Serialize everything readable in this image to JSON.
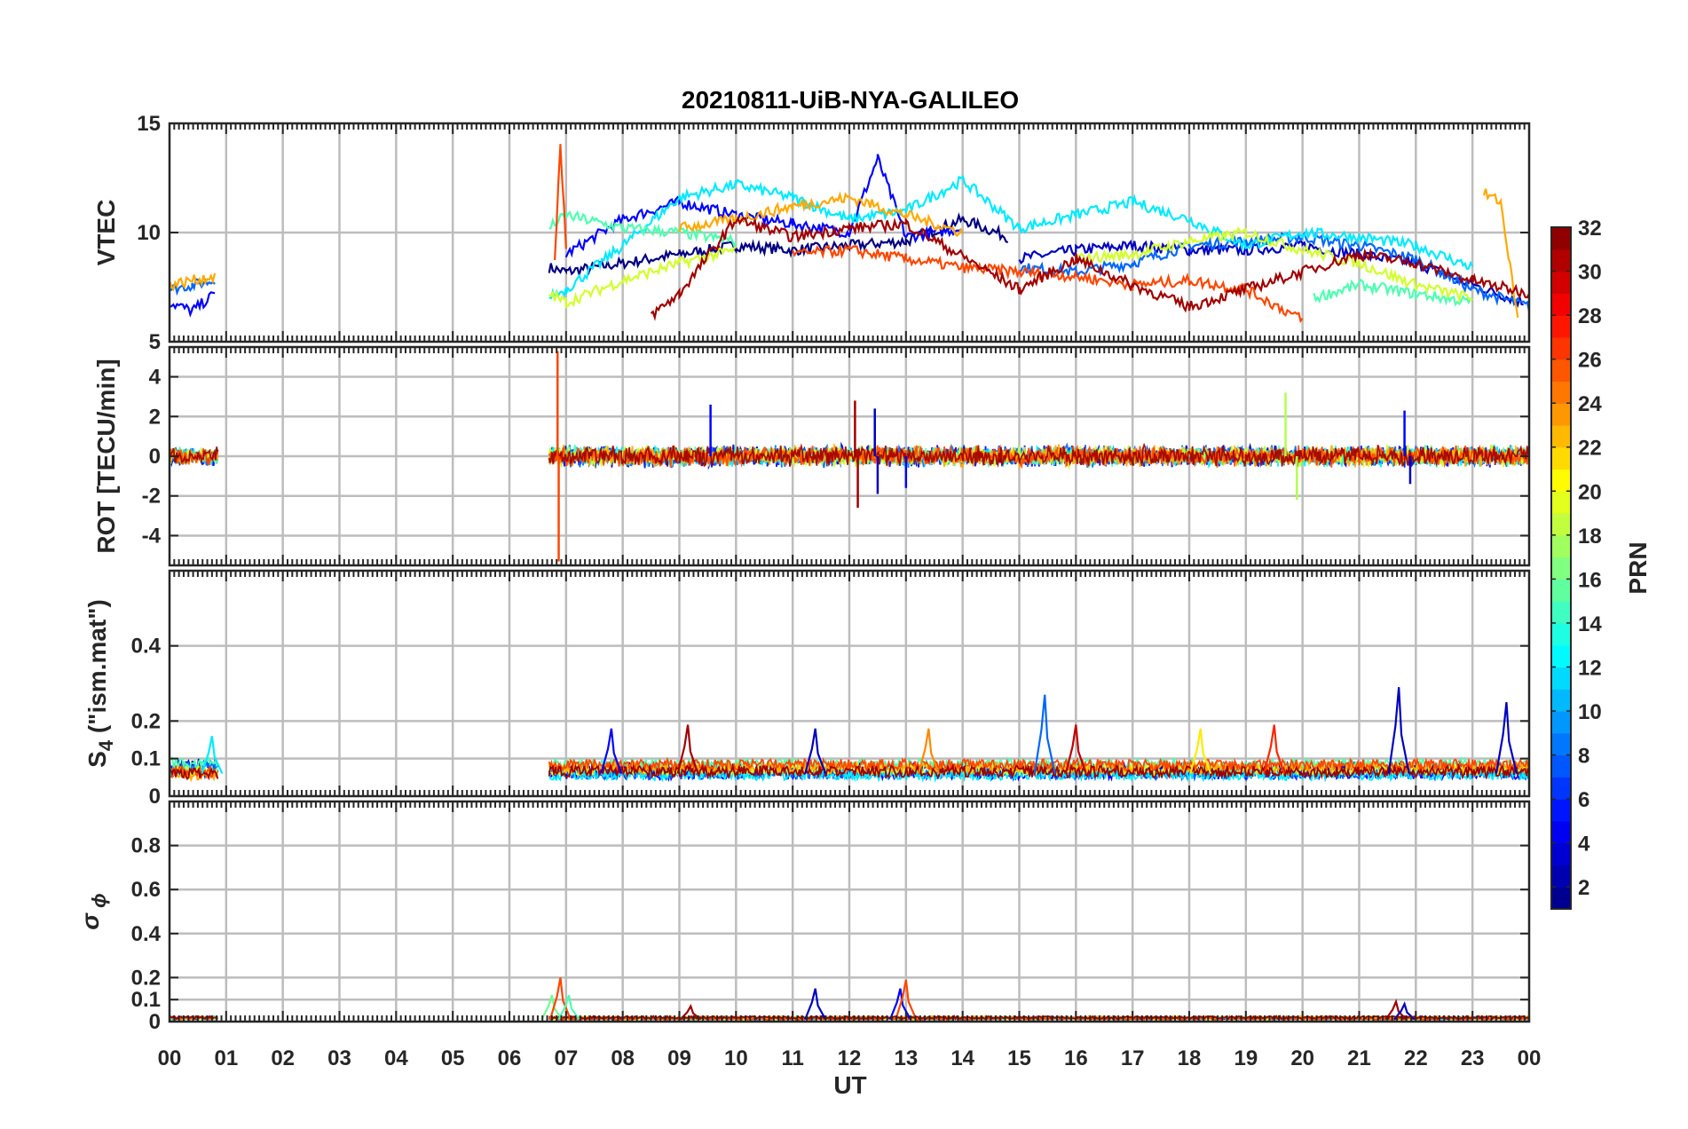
{
  "figure": {
    "title": "20210811-UiB-NYA-GALILEO",
    "colors": {
      "axis": "#262626",
      "grid": "#bdbdbd",
      "background": "#ffffff"
    }
  },
  "chart_data": [
    {
      "type": "line",
      "panel": "vtec",
      "ylabel": "VTEC",
      "ylim": [
        5,
        15
      ],
      "yticks": [
        "5",
        "10",
        "15"
      ],
      "yticks_v": [
        5,
        10,
        15
      ],
      "grid_y": [
        10
      ],
      "series": [
        {
          "prn": 1,
          "segments": [
            [
              6.7,
              8.4
            ],
            [
              7.0,
              8.2
            ],
            [
              8.0,
              8.6
            ],
            [
              9.0,
              9.0
            ],
            [
              10.0,
              9.4
            ],
            [
              11.0,
              9.2
            ],
            [
              12.0,
              9.4
            ],
            [
              13.0,
              9.6
            ],
            [
              14.0,
              10.6
            ],
            [
              14.8,
              9.8
            ]
          ]
        },
        {
          "prn": 3,
          "segments": [
            [
              15.0,
              8.8
            ],
            [
              16.0,
              9.2
            ],
            [
              17.0,
              9.4
            ],
            [
              18.0,
              9.2
            ],
            [
              19.0,
              9.2
            ],
            [
              20.0,
              9.4
            ],
            [
              21.0,
              9.0
            ],
            [
              22.0,
              8.6
            ],
            [
              23.0,
              7.6
            ],
            [
              23.9,
              6.8
            ]
          ]
        },
        {
          "prn": 5,
          "segments": [
            [
              0.0,
              6.8
            ],
            [
              0.4,
              6.4
            ],
            [
              0.8,
              7.2
            ],
            [
              7.0,
              9.0
            ],
            [
              8.0,
              10.6
            ],
            [
              9.0,
              11.4
            ],
            [
              10.0,
              10.8
            ],
            [
              11.0,
              10.4
            ],
            [
              12.0,
              10.0
            ],
            [
              12.5,
              13.4
            ],
            [
              13.0,
              9.8
            ],
            [
              14.0,
              10.2
            ]
          ]
        },
        {
          "prn": 8,
          "segments": [
            [
              0.0,
              7.4
            ],
            [
              0.4,
              7.6
            ],
            [
              0.8,
              7.8
            ],
            [
              15.0,
              8.4
            ],
            [
              16.0,
              8.2
            ],
            [
              17.0,
              8.6
            ],
            [
              18.0,
              9.4
            ],
            [
              19.0,
              9.6
            ],
            [
              20.0,
              9.8
            ],
            [
              21.0,
              9.4
            ],
            [
              22.0,
              8.8
            ],
            [
              23.0,
              7.4
            ],
            [
              24.0,
              6.6
            ]
          ]
        },
        {
          "prn": 12,
          "segments": [
            [
              6.7,
              7.0
            ],
            [
              7.0,
              7.4
            ],
            [
              8.0,
              9.4
            ],
            [
              9.0,
              11.6
            ],
            [
              10.0,
              12.2
            ],
            [
              11.0,
              11.6
            ],
            [
              12.0,
              10.6
            ],
            [
              13.0,
              11.0
            ],
            [
              14.0,
              12.4
            ],
            [
              15.0,
              10.2
            ],
            [
              16.0,
              10.8
            ],
            [
              17.0,
              11.4
            ],
            [
              18.0,
              10.6
            ],
            [
              19.0,
              9.4
            ],
            [
              20.0,
              10.0
            ],
            [
              21.0,
              9.8
            ],
            [
              22.0,
              9.4
            ],
            [
              23.0,
              8.4
            ]
          ]
        },
        {
          "prn": 15,
          "segments": [
            [
              6.7,
              10.2
            ],
            [
              7.0,
              10.8
            ],
            [
              8.0,
              10.2
            ],
            [
              9.0,
              10.0
            ],
            [
              10.0,
              9.6
            ],
            [
              20.2,
              7.0
            ],
            [
              21.0,
              7.6
            ],
            [
              22.0,
              7.2
            ],
            [
              23.0,
              6.8
            ]
          ]
        },
        {
          "prn": 19,
          "segments": [
            [
              6.7,
              7.2
            ],
            [
              7.0,
              6.8
            ],
            [
              8.0,
              7.8
            ],
            [
              9.0,
              8.6
            ],
            [
              10.0,
              9.2
            ],
            [
              16.0,
              8.8
            ],
            [
              17.0,
              9.0
            ],
            [
              18.0,
              9.6
            ],
            [
              19.0,
              10.0
            ],
            [
              20.0,
              9.2
            ],
            [
              21.0,
              8.6
            ],
            [
              22.0,
              7.6
            ],
            [
              23.0,
              7.0
            ]
          ]
        },
        {
          "prn": 23,
          "segments": [
            [
              9.0,
              10.2
            ],
            [
              10.0,
              10.6
            ],
            [
              11.0,
              11.2
            ],
            [
              12.0,
              11.6
            ],
            [
              13.0,
              10.8
            ],
            [
              14.0,
              10.0
            ],
            [
              0.0,
              7.6
            ],
            [
              0.4,
              7.8
            ],
            [
              0.8,
              8.0
            ],
            [
              23.2,
              11.8
            ],
            [
              23.5,
              11.4
            ],
            [
              23.8,
              6.0
            ]
          ]
        },
        {
          "prn": 26,
          "segments": [
            [
              6.8,
              8.8
            ],
            [
              6.9,
              14.0
            ],
            [
              7.0,
              9.4
            ],
            [
              11.0,
              9.0
            ],
            [
              12.0,
              9.2
            ],
            [
              13.0,
              8.8
            ],
            [
              14.0,
              8.4
            ],
            [
              15.0,
              8.2
            ],
            [
              16.0,
              8.0
            ],
            [
              17.0,
              7.6
            ],
            [
              18.0,
              7.8
            ],
            [
              19.0,
              7.4
            ],
            [
              20.0,
              6.0
            ]
          ]
        },
        {
          "prn": 31,
          "segments": [
            [
              8.5,
              6.2
            ],
            [
              9.0,
              7.2
            ],
            [
              10.0,
              10.6
            ],
            [
              11.0,
              9.8
            ],
            [
              12.0,
              10.2
            ],
            [
              13.0,
              10.4
            ],
            [
              15.0,
              7.4
            ],
            [
              16.0,
              8.8
            ],
            [
              17.0,
              7.6
            ],
            [
              18.0,
              6.6
            ],
            [
              21.0,
              9.0
            ],
            [
              22.0,
              8.6
            ],
            [
              23.0,
              7.8
            ],
            [
              24.0,
              7.2
            ]
          ]
        }
      ]
    },
    {
      "type": "line",
      "panel": "rot",
      "ylabel": "ROT [TECU/min]",
      "ylim": [
        -5.5,
        5.5
      ],
      "yticks": [
        "-4",
        "-2",
        "0",
        "2",
        "4"
      ],
      "yticks_v": [
        -4,
        -2,
        0,
        2,
        4
      ],
      "grid_y": [
        -4,
        -2,
        0,
        2,
        4
      ],
      "spikes": [
        {
          "x": 6.85,
          "y": 5.3,
          "prn": 26
        },
        {
          "x": 6.87,
          "y": -5.3,
          "prn": 26
        },
        {
          "x": 9.55,
          "y": 2.6,
          "prn": 5
        },
        {
          "x": 12.1,
          "y": 2.8,
          "prn": 31
        },
        {
          "x": 12.15,
          "y": -2.6,
          "prn": 31
        },
        {
          "x": 12.45,
          "y": 2.4,
          "prn": 3
        },
        {
          "x": 12.5,
          "y": -1.9,
          "prn": 3
        },
        {
          "x": 13.0,
          "y": -1.6,
          "prn": 5
        },
        {
          "x": 19.7,
          "y": 3.2,
          "prn": 18
        },
        {
          "x": 19.9,
          "y": -2.2,
          "prn": 18
        },
        {
          "x": 21.8,
          "y": 2.3,
          "prn": 5
        },
        {
          "x": 21.9,
          "y": -1.4,
          "prn": 3
        }
      ],
      "noise_band": [
        [
          0.0,
          0.85,
          0.5
        ],
        [
          6.7,
          24.0,
          0.6
        ]
      ]
    },
    {
      "type": "line",
      "panel": "s4",
      "ylabel": "S4 (\"ism.mat\")",
      "ylim": [
        0,
        0.6
      ],
      "yticks": [
        "0",
        "0.1",
        "0.2",
        "0.4"
      ],
      "yticks_v": [
        0,
        0.1,
        0.2,
        0.4
      ],
      "grid_y": [
        0.1,
        0.2,
        0.4
      ],
      "peaks": [
        {
          "x": 0.75,
          "y": 0.16,
          "prn": 12
        },
        {
          "x": 7.8,
          "y": 0.18,
          "prn": 5
        },
        {
          "x": 9.15,
          "y": 0.19,
          "prn": 31
        },
        {
          "x": 11.4,
          "y": 0.18,
          "prn": 3
        },
        {
          "x": 13.4,
          "y": 0.18,
          "prn": 24
        },
        {
          "x": 15.45,
          "y": 0.27,
          "prn": 8
        },
        {
          "x": 16.0,
          "y": 0.19,
          "prn": 30
        },
        {
          "x": 18.2,
          "y": 0.18,
          "prn": 21
        },
        {
          "x": 19.5,
          "y": 0.19,
          "prn": 27
        },
        {
          "x": 21.7,
          "y": 0.29,
          "prn": 3
        },
        {
          "x": 23.6,
          "y": 0.25,
          "prn": 3
        }
      ],
      "baseline": 0.06
    },
    {
      "type": "line",
      "panel": "sigma",
      "ylabel": "σ ϕ",
      "ylim": [
        0,
        1
      ],
      "yticks": [
        "0",
        "0.1",
        "0.2",
        "0.4",
        "0.6",
        "0.8"
      ],
      "yticks_v": [
        0,
        0.1,
        0.2,
        0.4,
        0.6,
        0.8
      ],
      "grid_y": [
        0.1,
        0.2,
        0.4,
        0.6,
        0.8
      ],
      "peaks": [
        {
          "x": 6.75,
          "y": 0.12,
          "prn": 16
        },
        {
          "x": 6.9,
          "y": 0.2,
          "prn": 26
        },
        {
          "x": 7.05,
          "y": 0.12,
          "prn": 15
        },
        {
          "x": 9.2,
          "y": 0.07,
          "prn": 31
        },
        {
          "x": 11.4,
          "y": 0.15,
          "prn": 3
        },
        {
          "x": 12.9,
          "y": 0.15,
          "prn": 5
        },
        {
          "x": 13.0,
          "y": 0.19,
          "prn": 26
        },
        {
          "x": 21.65,
          "y": 0.09,
          "prn": 31
        },
        {
          "x": 21.8,
          "y": 0.08,
          "prn": 3
        }
      ],
      "baseline": 0.01
    }
  ],
  "xaxis": {
    "label": "UT",
    "range": [
      0,
      24
    ],
    "ticks": [
      "00",
      "01",
      "02",
      "03",
      "04",
      "05",
      "06",
      "07",
      "08",
      "09",
      "10",
      "11",
      "12",
      "13",
      "14",
      "15",
      "16",
      "17",
      "18",
      "19",
      "20",
      "21",
      "22",
      "23",
      "00"
    ]
  },
  "colorbar": {
    "label": "PRN",
    "range": [
      1,
      32
    ],
    "ticks": [
      "2",
      "4",
      "6",
      "8",
      "10",
      "12",
      "14",
      "16",
      "18",
      "20",
      "22",
      "24",
      "26",
      "28",
      "30",
      "32"
    ],
    "ticks_v": [
      2,
      4,
      6,
      8,
      10,
      12,
      14,
      16,
      18,
      20,
      22,
      24,
      26,
      28,
      30,
      32
    ],
    "colormap": "jet"
  }
}
